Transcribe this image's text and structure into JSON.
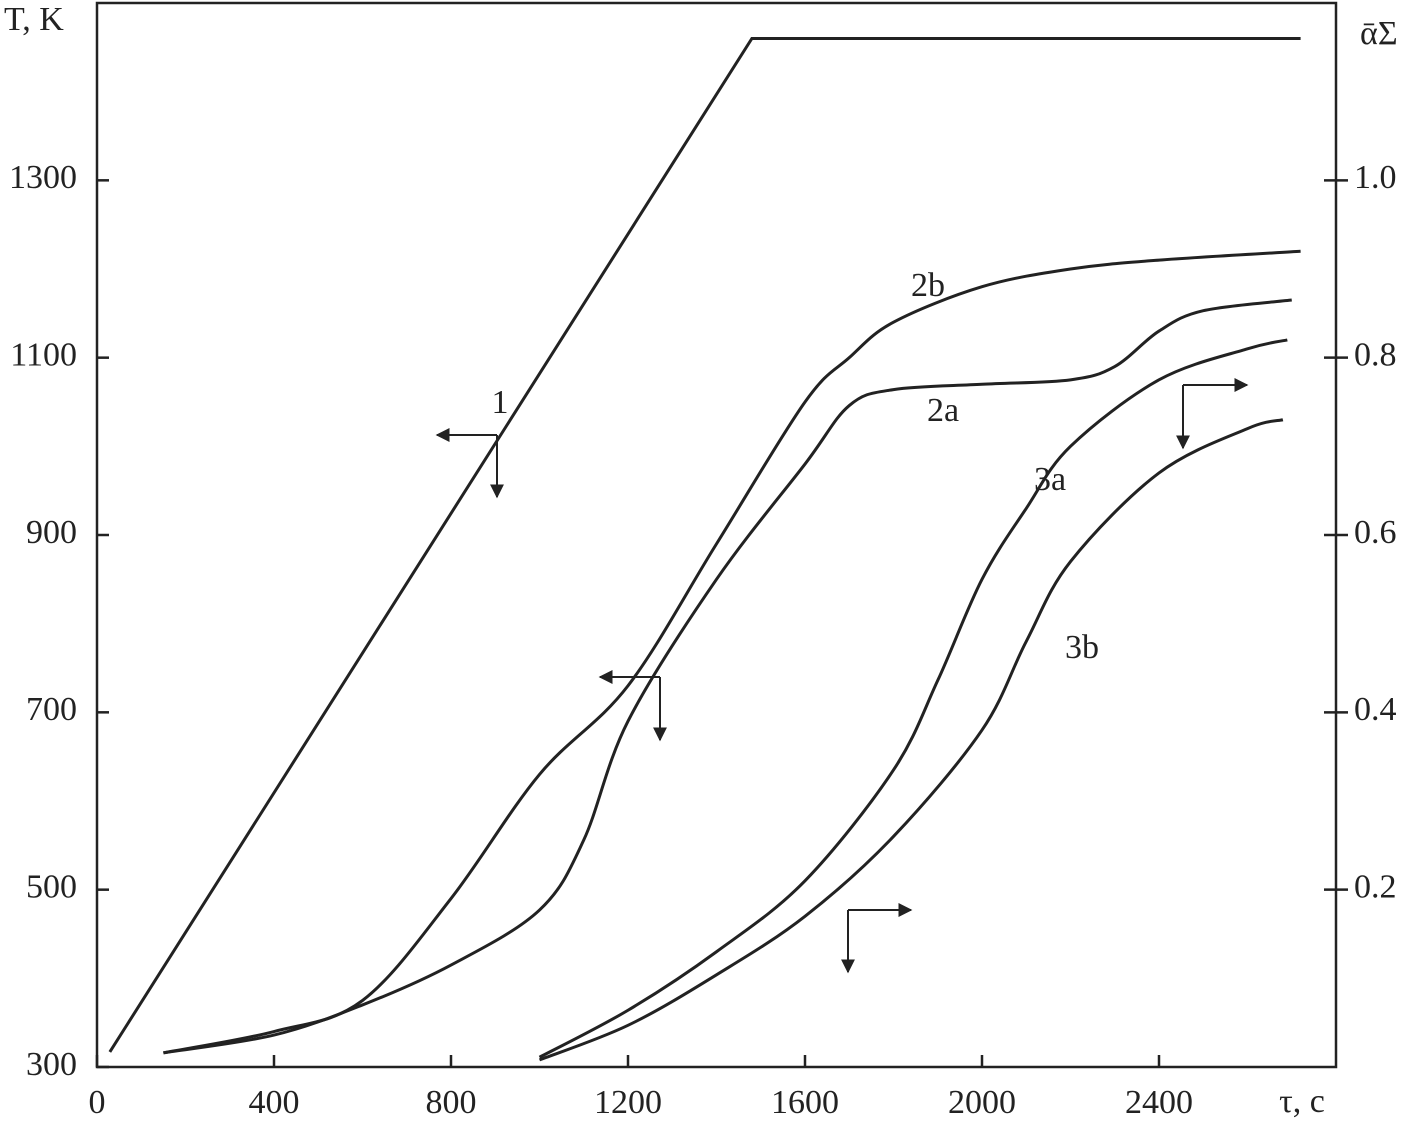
{
  "chart_data": {
    "type": "line",
    "x_label": "τ, c",
    "y_label": "T, K",
    "y2_label": "ᾱΣ",
    "xlim": [
      0,
      2800
    ],
    "xticks": [
      0,
      400,
      800,
      1200,
      1600,
      2000,
      2400
    ],
    "ylim": [
      300,
      1500
    ],
    "yticks": [
      300,
      500,
      700,
      900,
      1100,
      1300
    ],
    "y2lim": [
      0,
      1.2
    ],
    "y2ticks": [
      0.2,
      0.4,
      0.6,
      0.8,
      {
        "value": 1.0,
        "label": "1.0"
      }
    ],
    "color": "#222222",
    "series": [
      {
        "name": "1",
        "x": [
          29,
          1480,
          2720
        ],
        "values": [
          317,
          1460,
          1460
        ]
      },
      {
        "name": "2b",
        "axis": "y2",
        "x": [
          150,
          400,
          600,
          800,
          1000,
          1200,
          1400,
          1600,
          1700,
          1800,
          2000,
          2200,
          2400,
          2720
        ],
        "values": [
          0.016,
          0.04,
          0.075,
          0.19,
          0.33,
          0.43,
          0.59,
          0.75,
          0.8,
          0.84,
          0.88,
          0.9,
          0.91,
          0.92
        ]
      },
      {
        "name": "2a",
        "axis": "y2",
        "x": [
          150,
          400,
          600,
          800,
          1000,
          1100,
          1200,
          1400,
          1600,
          1700,
          1800,
          2000,
          2200,
          2300,
          2400,
          2500,
          2700
        ],
        "values": [
          0.016,
          0.036,
          0.07,
          0.115,
          0.177,
          0.256,
          0.39,
          0.55,
          0.68,
          0.746,
          0.764,
          0.77,
          0.775,
          0.79,
          0.83,
          0.853,
          0.865
        ]
      },
      {
        "name": "3a",
        "axis": "y2",
        "x": [
          1000,
          1200,
          1400,
          1600,
          1800,
          1900,
          2000,
          2100,
          2200,
          2400,
          2600,
          2690
        ],
        "values": [
          0.011,
          0.064,
          0.13,
          0.21,
          0.335,
          0.436,
          0.55,
          0.63,
          0.7,
          0.775,
          0.81,
          0.82
        ]
      },
      {
        "name": "3b",
        "axis": "y2",
        "x": [
          1000,
          1200,
          1400,
          1600,
          1800,
          2000,
          2100,
          2200,
          2400,
          2600,
          2680
        ],
        "values": [
          0.008,
          0.047,
          0.104,
          0.17,
          0.26,
          0.38,
          0.48,
          0.57,
          0.67,
          0.72,
          0.73
        ]
      }
    ]
  }
}
